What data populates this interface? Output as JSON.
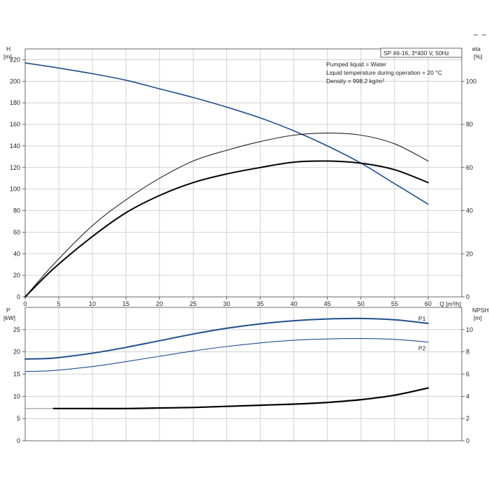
{
  "chart_data": [
    {
      "type": "line",
      "title_box": "SP 46-16, 3*400 V, 50Hz",
      "info_lines": [
        "Pumped liquid = Water",
        "Liquid temperature during operation = 20 °C",
        "Density = 998.2 kg/m³"
      ],
      "xlabel": "Q [m³/h]",
      "ylabel_left": [
        "H",
        "[m]"
      ],
      "ylabel_right": [
        "eta",
        "[%]"
      ],
      "xlim": [
        0,
        65
      ],
      "ylim_left": [
        0,
        230
      ],
      "ylim_right": [
        0,
        115
      ],
      "x_ticks": [
        0,
        5,
        10,
        15,
        20,
        25,
        30,
        35,
        40,
        45,
        50,
        55,
        60
      ],
      "y_ticks_left": [
        0,
        20,
        40,
        60,
        80,
        100,
        120,
        140,
        160,
        180,
        200,
        220
      ],
      "y_ticks_right": [
        0,
        20,
        40,
        60,
        80,
        100
      ],
      "series": [
        {
          "axis": "left",
          "color": "#1f4e8c",
          "x": [
            0,
            4.2,
            10,
            15,
            20,
            25,
            30,
            35,
            40,
            45,
            50,
            55,
            60
          ],
          "values": [
            217,
            213,
            207,
            201,
            193,
            185,
            176,
            166,
            154,
            140,
            124,
            105,
            86
          ]
        },
        {
          "axis": "right",
          "color": "#222222",
          "x": [
            0,
            4.2,
            10,
            15,
            20,
            25,
            30,
            35,
            40,
            45,
            50,
            55,
            60
          ],
          "values": [
            0,
            15,
            33,
            45,
            55,
            63,
            68,
            72,
            75,
            76,
            75,
            71,
            63
          ]
        },
        {
          "axis": "right",
          "color": "#000000",
          "x": [
            0,
            4.2,
            10,
            15,
            20,
            25,
            30,
            35,
            40,
            45,
            50,
            55,
            60
          ],
          "values": [
            0,
            13,
            28,
            39,
            47,
            53,
            57,
            60,
            62.5,
            63,
            62,
            59,
            53
          ]
        }
      ]
    },
    {
      "type": "line",
      "xlabel": "",
      "ylabel_left": [
        "P",
        "[kW]"
      ],
      "ylabel_right": [
        "NPSH",
        "[m]"
      ],
      "xlim": [
        0,
        65
      ],
      "ylim_left": [
        0,
        30
      ],
      "ylim_right": [
        0,
        12
      ],
      "y_ticks_left": [
        0,
        5,
        10,
        15,
        20,
        25
      ],
      "y_ticks_right": [
        0,
        2,
        4,
        6,
        8,
        10
      ],
      "series": [
        {
          "name": "P1",
          "axis": "left",
          "color": "#1f4e8c",
          "x": [
            0,
            4.2,
            10,
            15,
            20,
            25,
            30,
            35,
            40,
            45,
            50,
            55,
            60
          ],
          "values": [
            18.4,
            18.6,
            19.7,
            21.0,
            22.5,
            24.0,
            25.3,
            26.3,
            27.0,
            27.4,
            27.5,
            27.2,
            26.4
          ]
        },
        {
          "name": "P2",
          "axis": "left",
          "color": "#1f4e8c",
          "x": [
            0,
            4.2,
            10,
            15,
            20,
            25,
            30,
            35,
            40,
            45,
            50,
            55,
            60
          ],
          "values": [
            15.6,
            15.8,
            16.7,
            17.8,
            19.0,
            20.2,
            21.2,
            22.0,
            22.6,
            22.9,
            23.0,
            22.8,
            22.2
          ]
        },
        {
          "axis": "right",
          "color": "#000000",
          "x": [
            4.2,
            10,
            15,
            20,
            25,
            30,
            35,
            40,
            45,
            50,
            55,
            60
          ],
          "values": [
            2.9,
            2.9,
            2.9,
            2.95,
            3.0,
            3.1,
            3.2,
            3.3,
            3.45,
            3.7,
            4.1,
            4.75
          ]
        },
        {
          "axis": "right",
          "color": "#777777",
          "x": [
            0,
            4.2
          ],
          "values": [
            2.9,
            2.9
          ]
        }
      ]
    }
  ]
}
